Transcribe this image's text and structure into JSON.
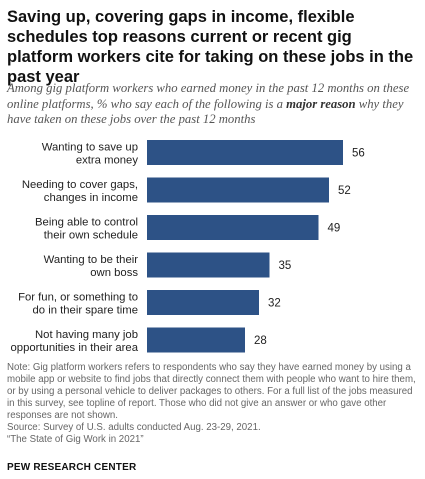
{
  "title": "Saving up, covering gaps in income, flexible schedules top reasons current or recent gig platform workers cite for taking on these jobs in the past year",
  "subtitle": {
    "before": "Among gig platform workers who earned money in the past 12 months on these online platforms, % who say each of the following is a ",
    "emphasis": "major reason",
    "after": " why they have taken on these jobs over the past 12 months"
  },
  "chart_data": {
    "type": "bar",
    "orientation": "horizontal",
    "categories": [
      [
        "Wanting to save up",
        "extra money"
      ],
      [
        "Needing to cover gaps,",
        "changes in income"
      ],
      [
        "Being able to control",
        "their own schedule"
      ],
      [
        "Wanting to be their",
        "own boss"
      ],
      [
        "For fun, or something to",
        "do in their spare time"
      ],
      [
        "Not having many job",
        "opportunities in their area"
      ]
    ],
    "values": [
      56,
      52,
      49,
      35,
      32,
      28
    ],
    "data_labels": [
      "56",
      "52",
      "49",
      "35",
      "32",
      "28"
    ],
    "bar_color": "#2d5286"
  },
  "note": "Note: Gig platform workers refers to respondents who say they have earned money by using a mobile app or website to find jobs that directly connect them with people who want to hire them, or by using a personal vehicle to deliver packages to others. For a full list of the jobs measured in this survey, see topline of report. Those who did not give an answer or who gave other responses are not shown.",
  "source": "Source: Survey of U.S. adults conducted Aug. 23-29, 2021.",
  "report": "“The State of Gig Work in 2021”",
  "logo": "PEW RESEARCH CENTER"
}
